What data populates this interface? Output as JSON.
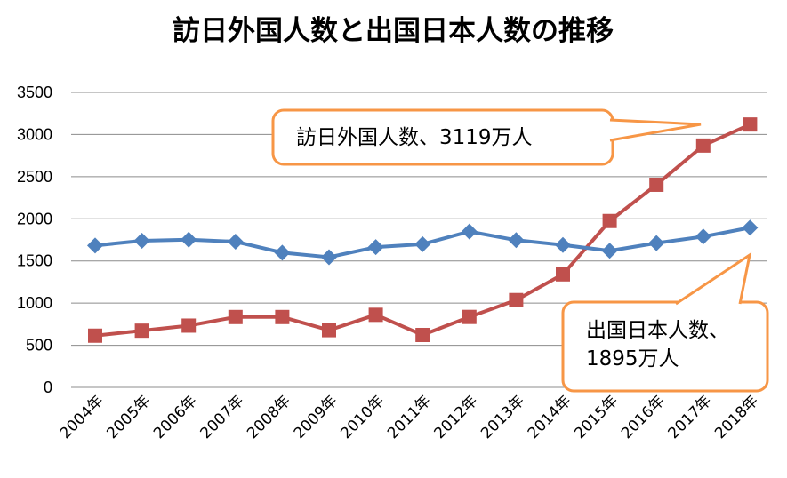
{
  "chart_data": {
    "type": "line",
    "title": "訪日外国人数と出国日本人数の推移",
    "categories": [
      "2004年",
      "2005年",
      "2006年",
      "2007年",
      "2008年",
      "2009年",
      "2010年",
      "2011年",
      "2012年",
      "2013年",
      "2014年",
      "2015年",
      "2016年",
      "2017年",
      "2018年"
    ],
    "ylim": [
      0,
      3500
    ],
    "yticks": [
      0,
      500,
      1000,
      1500,
      2000,
      2500,
      3000,
      3500
    ],
    "grid": true,
    "series": [
      {
        "id": "visitors",
        "color": "#c0504d",
        "marker": "square",
        "values": [
          614,
          673,
          733,
          835,
          835,
          679,
          861,
          622,
          836,
          1036,
          1341,
          1974,
          2404,
          2869,
          3119
        ]
      },
      {
        "id": "departures",
        "color": "#4f81bd",
        "marker": "diamond",
        "values": [
          1683,
          1740,
          1753,
          1729,
          1599,
          1545,
          1664,
          1699,
          1849,
          1747,
          1690,
          1621,
          1712,
          1789,
          1895
        ]
      }
    ],
    "annotations": [
      {
        "target": "visitors",
        "lines": [
          "訪日外国人数、3119万人"
        ],
        "border_color": "#f79646"
      },
      {
        "target": "departures",
        "lines": [
          "出国日本人数、",
          "1895万人"
        ],
        "border_color": "#f79646"
      }
    ]
  }
}
